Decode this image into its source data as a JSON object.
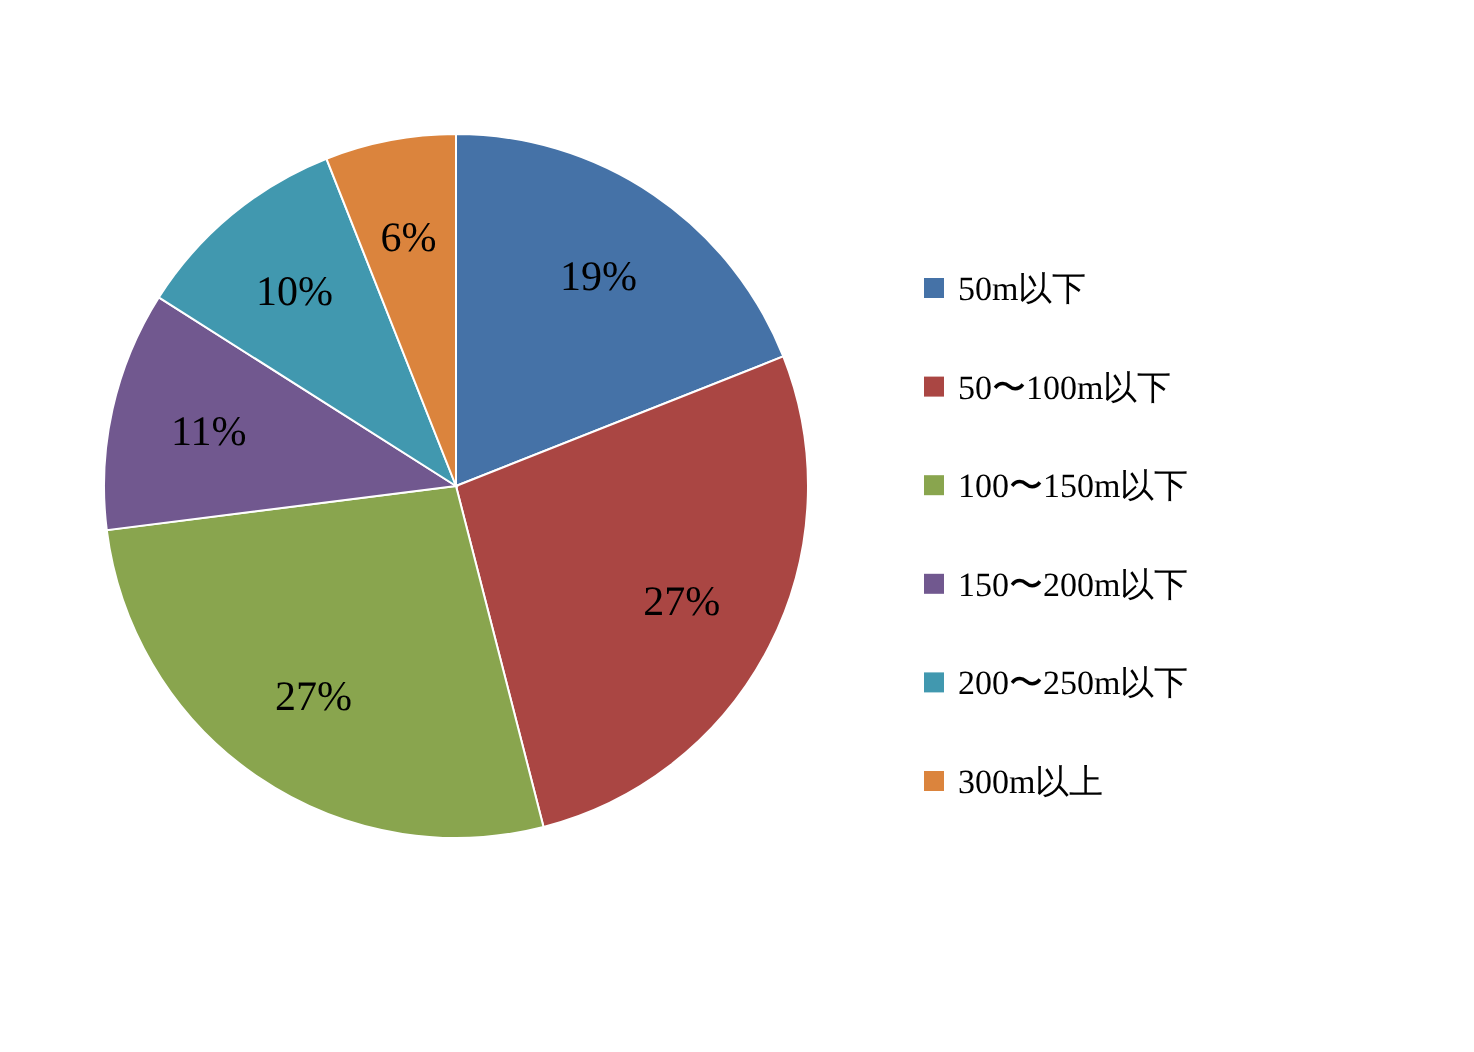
{
  "chart_data": {
    "type": "pie",
    "categories": [
      "50m以下",
      "50〜100m以下",
      "100〜150m以下",
      "150〜200m以下",
      "200〜250m以下",
      "300m以上"
    ],
    "values": [
      19,
      27,
      27,
      11,
      10,
      6
    ],
    "colors": [
      "#4572a7",
      "#aa4643",
      "#89a54e",
      "#71588f",
      "#4198af",
      "#db843d"
    ],
    "value_labels": [
      "19%",
      "27%",
      "27%",
      "11%",
      "10%",
      "6%"
    ],
    "legend": "right"
  }
}
